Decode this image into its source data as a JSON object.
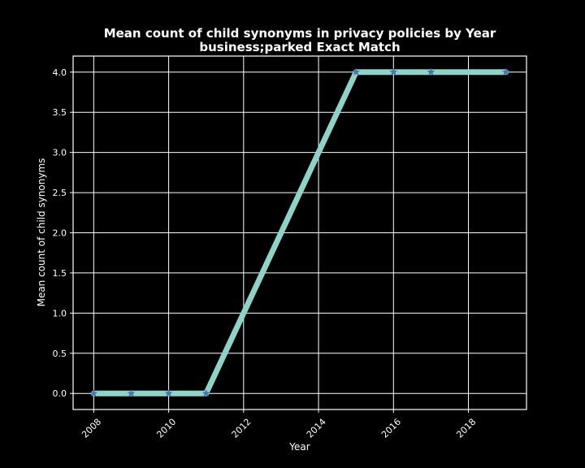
{
  "chart_data": {
    "type": "line",
    "title": "Mean count of child synonyms in privacy policies by Year",
    "subtitle": "business;parked Exact Match",
    "xlabel": "Year",
    "ylabel": "Mean count of child synonyms",
    "x": [
      2008,
      2009,
      2010,
      2011,
      2015,
      2016,
      2017,
      2019
    ],
    "series": [
      {
        "values": [
          0,
          0,
          0,
          0,
          4,
          4,
          4,
          4
        ]
      }
    ],
    "xlim": [
      2007.45,
      2019.55
    ],
    "ylim": [
      -0.2,
      4.2
    ],
    "xticks": [
      "2008",
      "2010",
      "2012",
      "2014",
      "2016",
      "2018"
    ],
    "yticks": [
      "0.0",
      "0.5",
      "1.0",
      "1.5",
      "2.0",
      "2.5",
      "3.0",
      "3.5",
      "4.0"
    ],
    "grid": true,
    "line_color": "#8dd3c7",
    "marker_color": "#4c72b0",
    "marker": "star"
  }
}
